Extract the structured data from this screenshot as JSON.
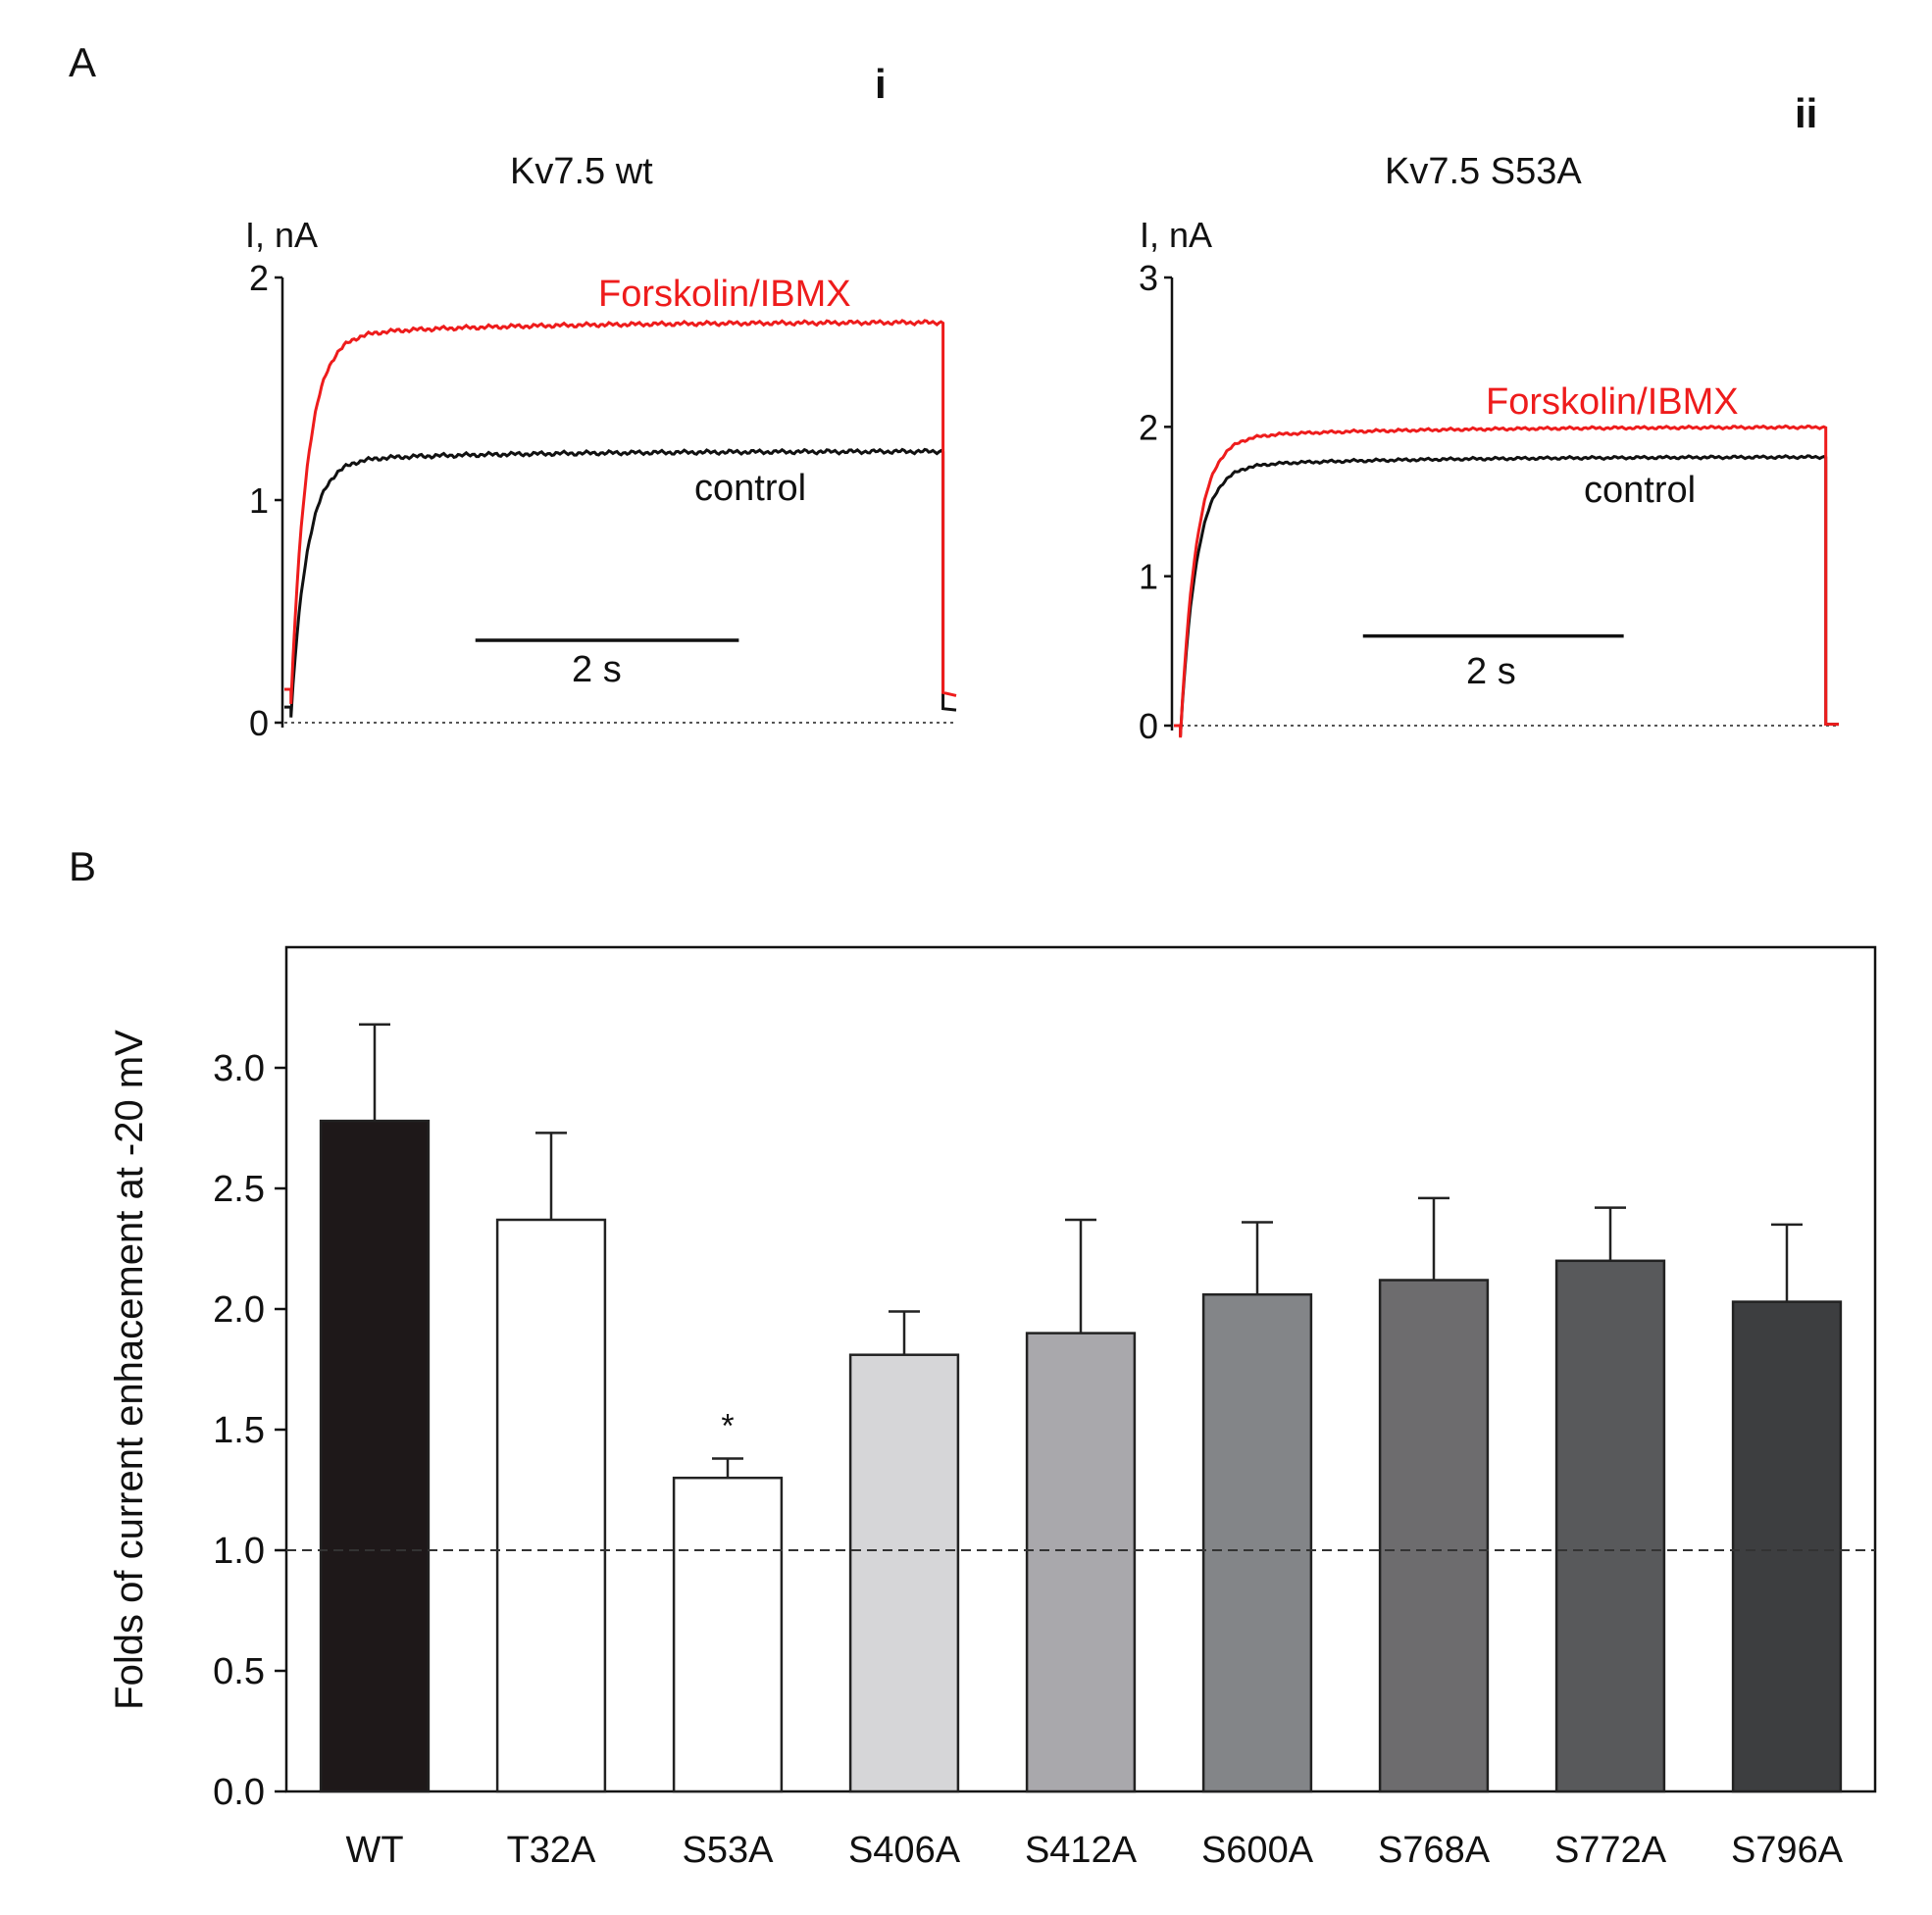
{
  "figure": {
    "panel_a_label": "A",
    "panel_b_label": "B"
  },
  "chart_data": [
    {
      "type": "line",
      "panel": "A-i",
      "panel_id": "i",
      "title": "Kv7.5 wt",
      "ylabel": "I, nA",
      "yticks": [
        "0",
        "1",
        "2"
      ],
      "ylim": [
        0,
        2
      ],
      "xlim_s": [
        0,
        5.1
      ],
      "scale_bar": {
        "label": "2 s",
        "start_s": 1.45,
        "length_s": 2.0,
        "level_nA": 0.37
      },
      "series": [
        {
          "name": "Forskolin/IBMX",
          "color": "#ee1c1c",
          "baseline": 0.15,
          "plateau": 1.8,
          "step_start_s": 0.05,
          "step_end_s": 5.0
        },
        {
          "name": "control",
          "color": "#111111",
          "baseline": 0.07,
          "plateau": 1.22,
          "step_start_s": 0.05,
          "step_end_s": 5.0
        }
      ],
      "legend_positions": {
        "Forskolin/IBMX": "upper-right",
        "control": "middle-right"
      }
    },
    {
      "type": "line",
      "panel": "A-ii",
      "panel_id": "ii",
      "title": "Kv7.5 S53A",
      "ylabel": "I, nA",
      "yticks": [
        "0",
        "1",
        "2",
        "3"
      ],
      "ylim": [
        0,
        3
      ],
      "xlim_s": [
        0,
        5.1
      ],
      "scale_bar": {
        "label": "2 s",
        "start_s": 1.45,
        "length_s": 2.0,
        "level_nA": 0.6
      },
      "series": [
        {
          "name": "Forskolin/IBMX",
          "color": "#ee1c1c",
          "baseline": 0.0,
          "plateau": 2.0,
          "step_start_s": 0.05,
          "step_end_s": 5.0
        },
        {
          "name": "control",
          "color": "#111111",
          "baseline": 0.0,
          "plateau": 1.8,
          "step_start_s": 0.05,
          "step_end_s": 5.0
        }
      ],
      "legend_positions": {
        "Forskolin/IBMX": "upper-right",
        "control": "middle-right"
      }
    },
    {
      "type": "bar",
      "panel": "B",
      "ylabel": "Folds of current enhacement at -20 mV",
      "categories": [
        "WT",
        "T32A",
        "S53A",
        "S406A",
        "S412A",
        "S600A",
        "S768A",
        "S772A",
        "S796A"
      ],
      "values": [
        2.78,
        2.37,
        1.3,
        1.81,
        1.9,
        2.06,
        2.12,
        2.2,
        2.03
      ],
      "errors": [
        0.4,
        0.36,
        0.08,
        0.18,
        0.47,
        0.3,
        0.34,
        0.22,
        0.32
      ],
      "colors": [
        "#1e1819",
        "#ffffff",
        "#ffffff",
        "#d6d6d8",
        "#a9a8ac",
        "#838588",
        "#6d6c6e",
        "#58595b",
        "#3d3e40"
      ],
      "significance": [
        "",
        "",
        "*",
        "",
        "",
        "",
        "",
        "",
        ""
      ],
      "yticks": [
        "0.0",
        "0.5",
        "1.0",
        "1.5",
        "2.0",
        "2.5",
        "3.0"
      ],
      "ylim": [
        0,
        3.5
      ],
      "reference_line": 1.0
    }
  ]
}
